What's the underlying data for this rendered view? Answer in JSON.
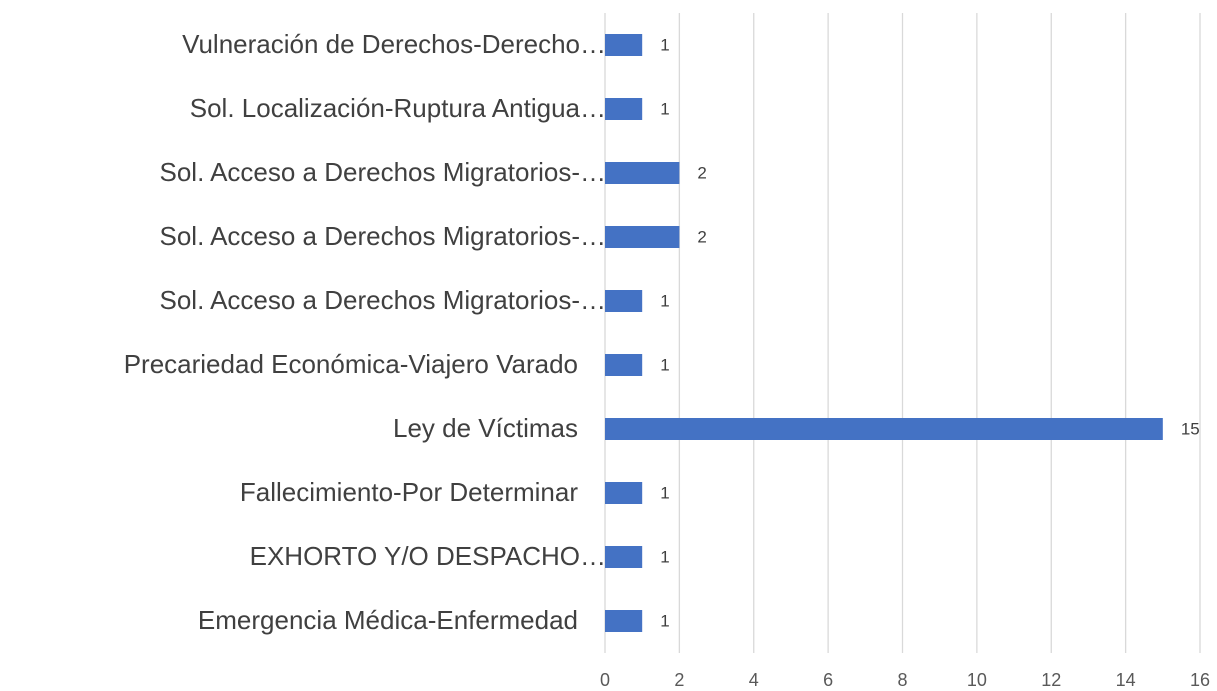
{
  "chart_data": {
    "type": "barh",
    "categories": [
      "Vulneración de Derechos-Derecho…",
      "Sol. Localización-Ruptura Antigua…",
      "Sol. Acceso a Derechos Migratorios-…",
      "Sol. Acceso a Derechos Migratorios-…",
      "Sol. Acceso a Derechos Migratorios-…",
      "Precariedad Económica-Viajero Varado",
      "Ley de Víctimas",
      "Fallecimiento-Por Determinar",
      "EXHORTO Y/O DESPACHO…",
      "Emergencia Médica-Enfermedad"
    ],
    "values": [
      1,
      1,
      2,
      2,
      1,
      1,
      15,
      1,
      1,
      1
    ],
    "color": "#4472c4",
    "xlim": [
      0,
      16
    ],
    "xticks": [
      0,
      2,
      4,
      6,
      8,
      10,
      12,
      14,
      16
    ],
    "grid": true
  }
}
